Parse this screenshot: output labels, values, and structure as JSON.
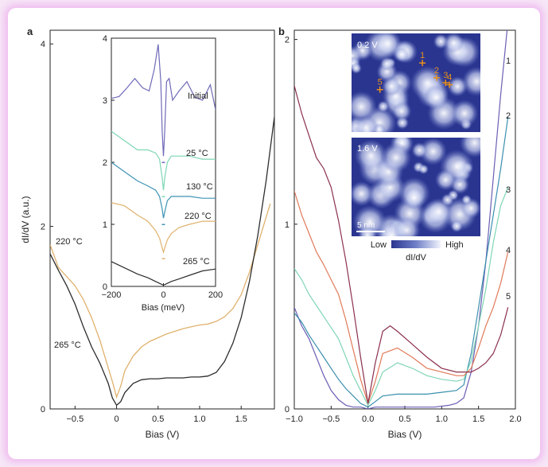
{
  "chart_data": [
    {
      "panel": "a",
      "type": "line",
      "xlabel": "Bias (V)",
      "ylabel": "dI/dV (a.u.)",
      "xlim": [
        -0.8,
        1.9
      ],
      "ylim": [
        0,
        4.15
      ],
      "xticks": [
        -0.5,
        0,
        0.5,
        1,
        1.5
      ],
      "xtick_labels": [
        "−0.5",
        "0",
        "0.5",
        "1.0",
        "1.5"
      ],
      "yticks": [
        0,
        2,
        4
      ],
      "ytick_labels": [
        "0",
        "2",
        "4"
      ],
      "series": [
        {
          "name": "220 °C",
          "color": "#e0b26e",
          "x": [
            -0.8,
            -0.7,
            -0.6,
            -0.5,
            -0.4,
            -0.3,
            -0.2,
            -0.1,
            -0.05,
            0,
            0.05,
            0.1,
            0.2,
            0.3,
            0.4,
            0.5,
            0.6,
            0.7,
            0.8,
            0.9,
            1.0,
            1.1,
            1.2,
            1.3,
            1.4,
            1.5,
            1.6,
            1.7,
            1.8,
            1.85
          ],
          "y": [
            1.8,
            1.55,
            1.45,
            1.35,
            1.2,
            1.0,
            0.75,
            0.45,
            0.3,
            0.13,
            0.25,
            0.42,
            0.58,
            0.68,
            0.74,
            0.78,
            0.82,
            0.85,
            0.88,
            0.9,
            0.92,
            0.93,
            0.96,
            1.01,
            1.1,
            1.25,
            1.5,
            1.8,
            2.1,
            2.25
          ]
        },
        {
          "name": "265 °C",
          "color": "#2d2d2d",
          "x": [
            -0.8,
            -0.7,
            -0.6,
            -0.5,
            -0.4,
            -0.3,
            -0.2,
            -0.1,
            -0.05,
            0,
            0.05,
            0.1,
            0.2,
            0.3,
            0.4,
            0.5,
            0.6,
            0.7,
            0.8,
            0.9,
            1.0,
            1.1,
            1.2,
            1.3,
            1.4,
            1.5,
            1.6,
            1.7,
            1.8,
            1.9
          ],
          "y": [
            1.7,
            1.52,
            1.35,
            1.15,
            0.9,
            0.68,
            0.5,
            0.28,
            0.12,
            0.04,
            0.08,
            0.18,
            0.28,
            0.32,
            0.33,
            0.33,
            0.34,
            0.34,
            0.34,
            0.35,
            0.35,
            0.36,
            0.4,
            0.52,
            0.72,
            1.0,
            1.4,
            1.9,
            2.5,
            3.2
          ]
        }
      ],
      "series_labels": [
        "220 °C",
        "265 °C"
      ]
    },
    {
      "panel": "a-inset",
      "type": "line",
      "xlabel": "Bias (meV)",
      "xlim": [
        -200,
        200
      ],
      "ylim": [
        0,
        4
      ],
      "xticks": [
        -200,
        0,
        200
      ],
      "xtick_labels": [
        "−200",
        "0",
        "200"
      ],
      "yticks": [
        0,
        1,
        2,
        3,
        4
      ],
      "ytick_labels": [
        "0",
        "1",
        "2",
        "3",
        "4"
      ],
      "series": [
        {
          "name": "Initial",
          "color": "#6e6ab8",
          "x": [
            -200,
            -170,
            -140,
            -110,
            -80,
            -55,
            -35,
            -20,
            -10,
            -5,
            0,
            5,
            12,
            22,
            35,
            60,
            90,
            120,
            150,
            180,
            200
          ],
          "y": [
            3.03,
            3.06,
            3.2,
            3.35,
            3.2,
            3.15,
            3.5,
            3.9,
            3.3,
            2.5,
            2.1,
            2.5,
            3.3,
            3.35,
            3.0,
            3.15,
            3.3,
            3.05,
            3.0,
            3.25,
            2.85
          ]
        },
        {
          "name": "25 °C",
          "color": "#7fd6b4",
          "x": [
            -200,
            -150,
            -100,
            -60,
            -30,
            -15,
            -5,
            0,
            5,
            15,
            30,
            60,
            100,
            150,
            200
          ],
          "y": [
            2.5,
            2.35,
            2.2,
            2.2,
            2.15,
            2.05,
            1.75,
            1.55,
            1.75,
            2.0,
            2.1,
            2.1,
            2.1,
            2.05,
            2.05
          ]
        },
        {
          "name": "130 °C",
          "color": "#3e93b4",
          "x": [
            -200,
            -150,
            -100,
            -60,
            -30,
            -15,
            -5,
            0,
            5,
            15,
            30,
            60,
            100,
            150,
            200
          ],
          "y": [
            2.0,
            1.85,
            1.7,
            1.62,
            1.55,
            1.45,
            1.25,
            1.1,
            1.2,
            1.38,
            1.45,
            1.45,
            1.45,
            1.42,
            1.42
          ]
        },
        {
          "name": "220 °C",
          "color": "#e0b26e",
          "x": [
            -200,
            -150,
            -100,
            -60,
            -30,
            -15,
            -5,
            0,
            5,
            15,
            30,
            60,
            100,
            150,
            200
          ],
          "y": [
            1.35,
            1.3,
            1.15,
            1.05,
            0.9,
            0.78,
            0.62,
            0.55,
            0.62,
            0.75,
            0.85,
            0.95,
            1.0,
            1.05,
            1.05
          ]
        },
        {
          "name": "265 °C",
          "color": "#2d2d2d",
          "x": [
            -200,
            -150,
            -100,
            -60,
            -30,
            -10,
            0,
            10,
            30,
            60,
            100,
            150,
            200
          ],
          "y": [
            0.4,
            0.3,
            0.2,
            0.14,
            0.08,
            0.04,
            0.02,
            0.04,
            0.08,
            0.12,
            0.18,
            0.25,
            0.28
          ]
        }
      ]
    },
    {
      "panel": "b",
      "type": "line",
      "xlabel": "Bias (V)",
      "xlim": [
        -1.0,
        2.0
      ],
      "ylim": [
        0,
        2.05
      ],
      "xticks": [
        -1.0,
        -0.5,
        0,
        0.5,
        1.0,
        1.5,
        2.0
      ],
      "xtick_labels": [
        "−1.0",
        "−0.5",
        "0.0",
        "0.5",
        "1.0",
        "1.5",
        "2.0"
      ],
      "yticks": [
        0,
        1,
        2
      ],
      "ytick_labels": [
        "0",
        "1",
        "2"
      ],
      "series": [
        {
          "name": "1",
          "color": "#6a5fb3",
          "x": [
            -1.0,
            -0.9,
            -0.8,
            -0.7,
            -0.6,
            -0.5,
            -0.4,
            -0.3,
            -0.2,
            -0.1,
            0,
            0.1,
            0.3,
            0.5,
            0.7,
            0.9,
            1.1,
            1.2,
            1.3,
            1.4,
            1.5,
            1.6,
            1.7,
            1.8,
            1.9
          ],
          "y": [
            0.55,
            0.45,
            0.38,
            0.28,
            0.18,
            0.1,
            0.05,
            0.02,
            0.01,
            0.01,
            0.0,
            0.01,
            0.01,
            0.01,
            0.01,
            0.01,
            0.02,
            0.03,
            0.06,
            0.2,
            0.45,
            0.8,
            1.25,
            1.7,
            2.1
          ]
        },
        {
          "name": "2",
          "color": "#3a8fae",
          "x": [
            -1.0,
            -0.9,
            -0.8,
            -0.7,
            -0.6,
            -0.5,
            -0.4,
            -0.3,
            -0.2,
            -0.1,
            0,
            0.1,
            0.2,
            0.4,
            0.6,
            0.8,
            1.0,
            1.2,
            1.3,
            1.4,
            1.5,
            1.6,
            1.7,
            1.8,
            1.9
          ],
          "y": [
            0.52,
            0.47,
            0.4,
            0.34,
            0.28,
            0.22,
            0.16,
            0.11,
            0.07,
            0.03,
            0.01,
            0.04,
            0.07,
            0.08,
            0.08,
            0.08,
            0.09,
            0.1,
            0.13,
            0.3,
            0.55,
            0.8,
            1.05,
            1.3,
            1.58
          ]
        },
        {
          "name": "3",
          "color": "#7fd6b4",
          "x": [
            -1.0,
            -0.9,
            -0.8,
            -0.7,
            -0.6,
            -0.5,
            -0.4,
            -0.3,
            -0.2,
            -0.1,
            0,
            0.1,
            0.2,
            0.4,
            0.6,
            0.8,
            1.0,
            1.2,
            1.3,
            1.4,
            1.5,
            1.6,
            1.7,
            1.8,
            1.9
          ],
          "y": [
            0.76,
            0.7,
            0.62,
            0.56,
            0.5,
            0.44,
            0.38,
            0.28,
            0.18,
            0.1,
            0.02,
            0.1,
            0.2,
            0.25,
            0.22,
            0.18,
            0.16,
            0.15,
            0.16,
            0.26,
            0.45,
            0.65,
            0.9,
            1.1,
            1.2
          ]
        },
        {
          "name": "4",
          "color": "#e07a5a",
          "x": [
            -1.0,
            -0.9,
            -0.8,
            -0.7,
            -0.6,
            -0.5,
            -0.4,
            -0.3,
            -0.2,
            -0.1,
            0,
            0.1,
            0.2,
            0.4,
            0.6,
            0.8,
            1.0,
            1.2,
            1.3,
            1.4,
            1.5,
            1.6,
            1.7,
            1.8,
            1.9
          ],
          "y": [
            1.18,
            1.05,
            0.95,
            0.85,
            0.78,
            0.7,
            0.62,
            0.48,
            0.32,
            0.16,
            0.03,
            0.15,
            0.3,
            0.33,
            0.28,
            0.22,
            0.2,
            0.18,
            0.18,
            0.22,
            0.33,
            0.45,
            0.55,
            0.68,
            0.85
          ]
        },
        {
          "name": "5",
          "color": "#8b2f4f",
          "x": [
            -1.0,
            -0.9,
            -0.8,
            -0.7,
            -0.6,
            -0.5,
            -0.4,
            -0.3,
            -0.2,
            -0.1,
            0,
            0.1,
            0.2,
            0.3,
            0.4,
            0.6,
            0.8,
            1.0,
            1.2,
            1.4,
            1.5,
            1.6,
            1.7,
            1.8,
            1.9
          ],
          "y": [
            1.75,
            1.6,
            1.48,
            1.36,
            1.3,
            1.2,
            1.02,
            0.8,
            0.55,
            0.28,
            0.03,
            0.25,
            0.42,
            0.45,
            0.42,
            0.35,
            0.28,
            0.22,
            0.2,
            0.2,
            0.22,
            0.25,
            0.3,
            0.4,
            0.55
          ]
        }
      ]
    }
  ],
  "panel_b_maps": {
    "map1_label": "0.2 V",
    "map2_label": "1.6 V",
    "scalebar_label": "5 nm",
    "colorbar_low": "Low",
    "colorbar_high": "High",
    "colorbar_label": "dI/dV",
    "marker_color": "#e8901c",
    "markers": [
      {
        "label": "1",
        "u": 0.55,
        "v": 0.3
      },
      {
        "label": "2",
        "u": 0.66,
        "v": 0.45
      },
      {
        "label": "3",
        "u": 0.73,
        "v": 0.5
      },
      {
        "label": "4",
        "u": 0.76,
        "v": 0.52
      },
      {
        "label": "5",
        "u": 0.22,
        "v": 0.57
      }
    ]
  },
  "colors": {
    "map_dark": "#2a3590",
    "map_mid": "#6f7fc8",
    "map_light": "#f2f4fc"
  }
}
